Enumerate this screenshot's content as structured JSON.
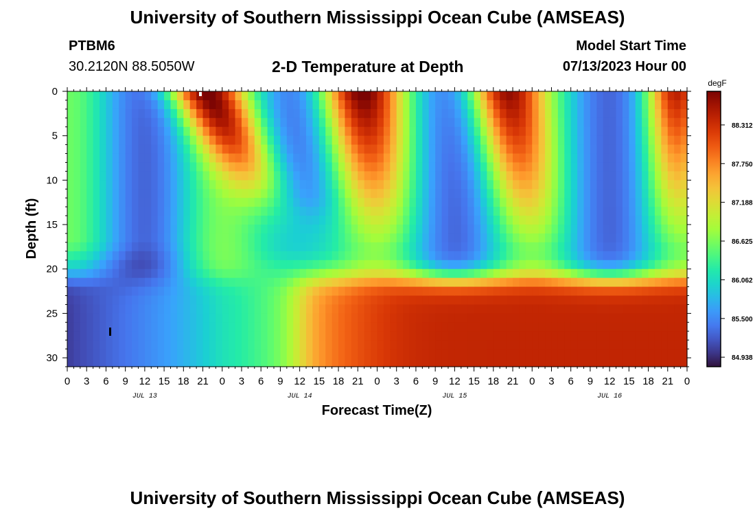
{
  "header": {
    "title": "University of Southern Mississippi Ocean Cube (AMSEAS)",
    "station": "PTBM6",
    "location": "30.2120N  88.5050W",
    "subtitle": "2-D Temperature at Depth",
    "model_start_label": "Model Start Time",
    "model_start_value": "07/13/2023 Hour 00"
  },
  "footer": {
    "title": "University of Southern Mississippi Ocean Cube (AMSEAS)"
  },
  "chart_data": {
    "type": "heatmap",
    "title": "2-D Temperature at Depth",
    "xlabel": "Forecast Time(Z)",
    "ylabel": "Depth (ft)",
    "xlim": [
      0,
      96
    ],
    "ylim": [
      31,
      0
    ],
    "x_ticks": [
      "0",
      "3",
      "6",
      "9",
      "12",
      "15",
      "18",
      "21",
      "0",
      "3",
      "6",
      "9",
      "12",
      "15",
      "18",
      "21",
      "0",
      "3",
      "6",
      "9",
      "12",
      "15",
      "18",
      "21",
      "0",
      "3",
      "6",
      "9",
      "12",
      "15",
      "18",
      "21",
      "0"
    ],
    "y_ticks": [
      "0",
      "5",
      "10",
      "15",
      "20",
      "25",
      "30"
    ],
    "y_tick_values": [
      0,
      5,
      10,
      15,
      20,
      25,
      30
    ],
    "date_labels": [
      {
        "label": "JUL 13",
        "hour": 12
      },
      {
        "label": "JUL 14",
        "hour": 36
      },
      {
        "label": "JUL 15",
        "hour": 60
      },
      {
        "label": "JUL 16",
        "hour": 84
      }
    ],
    "colorbar": {
      "units": "degF",
      "min": 84.8,
      "max": 88.8,
      "ticks": [
        "88.312",
        "87.750",
        "87.188",
        "86.625",
        "86.062",
        "85.500",
        "84.938"
      ],
      "tick_values": [
        88.312,
        87.75,
        87.188,
        86.625,
        86.062,
        85.5,
        84.938
      ]
    },
    "colors": [
      "#30123b",
      "#4145ab",
      "#4675ed",
      "#39a2fc",
      "#1bcfd4",
      "#24eca6",
      "#61fc6c",
      "#a4fc3b",
      "#d1e834",
      "#f3c63a",
      "#fe9b2d",
      "#f36315",
      "#d93806",
      "#b11901",
      "#7a0403"
    ]
  }
}
